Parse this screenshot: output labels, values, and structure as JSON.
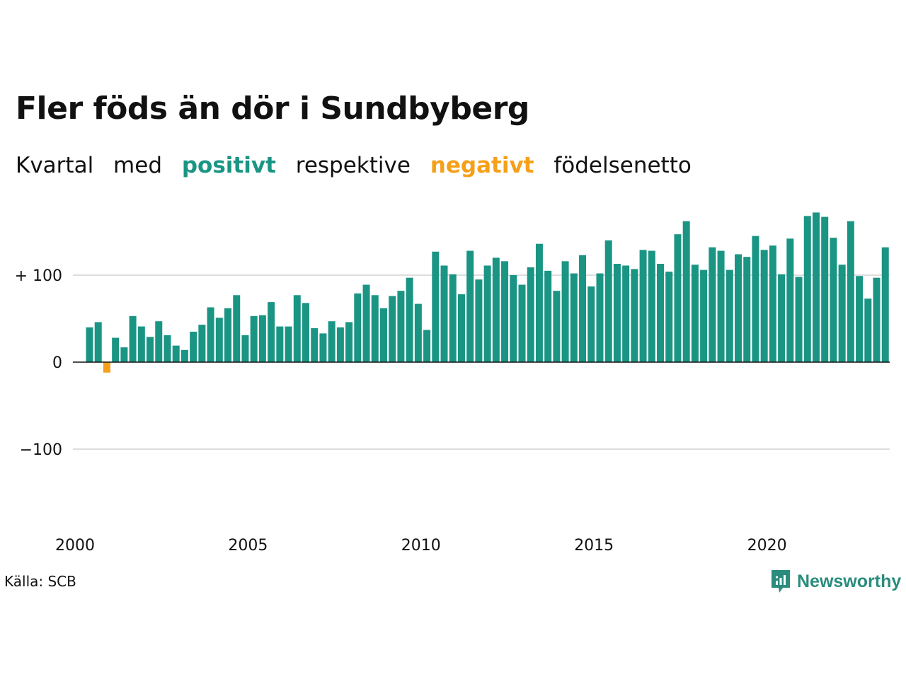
{
  "title": "Fler föds än dör i Sundbyberg",
  "subtitle": {
    "part1": "Kvartal",
    "part2": "med",
    "positive_word": "positivt",
    "part3": "respektive",
    "negative_word": "negativt",
    "part4": "födelsenetto"
  },
  "colors": {
    "positive": "#1a9584",
    "negative": "#f5a01a",
    "gridline": "#dddddd",
    "text": "#111111",
    "brand": "#2a8c7c"
  },
  "source": "Källa: SCB",
  "brand": {
    "name": "Newsworthy",
    "icon": "newsworthy-logo-icon"
  },
  "chart_data": {
    "type": "bar",
    "title": "Fler föds än dör i Sundbyberg",
    "subtitle": "Kvartal med positivt respektive negativt födelsenetto",
    "xlabel": "",
    "ylabel": "",
    "x_start": "2000 Q2",
    "x_ticks": [
      "2000",
      "2005",
      "2010",
      "2015",
      "2020"
    ],
    "y_ticks": [
      {
        "value": 100,
        "label": "+ 100"
      },
      {
        "value": 0,
        "label": "0"
      },
      {
        "value": -100,
        "label": "−100"
      }
    ],
    "ylim": [
      -190,
      190
    ],
    "grid": true,
    "values": [
      40,
      46,
      -12,
      28,
      17,
      53,
      41,
      29,
      47,
      31,
      19,
      14,
      35,
      43,
      63,
      51,
      62,
      77,
      31,
      53,
      54,
      69,
      41,
      41,
      77,
      68,
      39,
      33,
      47,
      40,
      46,
      79,
      89,
      77,
      62,
      76,
      82,
      97,
      67,
      37,
      127,
      111,
      101,
      78,
      128,
      95,
      111,
      120,
      116,
      100,
      89,
      109,
      136,
      105,
      82,
      116,
      102,
      123,
      87,
      102,
      140,
      113,
      111,
      107,
      129,
      128,
      113,
      104,
      147,
      162,
      112,
      106,
      132,
      128,
      106,
      124,
      121,
      145,
      129,
      134,
      101,
      142,
      98,
      168,
      172,
      167,
      143,
      112,
      162,
      99,
      73,
      97,
      132
    ]
  }
}
